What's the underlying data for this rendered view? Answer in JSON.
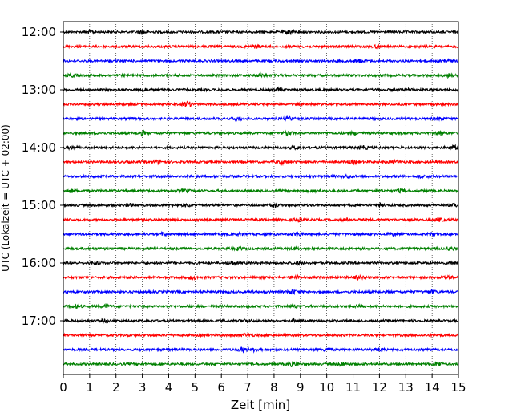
{
  "chart_data": {
    "type": "line",
    "subtype": "helicorder-seismogram",
    "xlabel": "Zeit  [min]",
    "ylabel": "UTC (Lokalzeit = UTC + 02:00)",
    "xlim": [
      0,
      15
    ],
    "x_ticks": [
      "0",
      "1",
      "2",
      "3",
      "4",
      "5",
      "6",
      "7",
      "8",
      "9",
      "10",
      "11",
      "12",
      "13",
      "14",
      "15"
    ],
    "y_ticks": [
      "12:00",
      "13:00",
      "14:00",
      "15:00",
      "16:00",
      "17:00"
    ],
    "grid": "vertical dotted lines at each minute",
    "trace_interval_minutes": 15,
    "trace_color_cycle": [
      "#000000",
      "#ff0000",
      "#0000ff",
      "#008000"
    ],
    "traces": [
      {
        "start": "12:00",
        "color": "#000000",
        "events": [
          [
            1.05,
            1.4
          ],
          [
            3.0,
            2.2
          ],
          [
            8.6,
            2.0
          ]
        ]
      },
      {
        "start": "12:15",
        "color": "#ff0000",
        "events": [
          [
            7.3,
            1.3
          ],
          [
            11.8,
            1.2
          ]
        ]
      },
      {
        "start": "12:30",
        "color": "#0000ff",
        "events": [
          [
            11.2,
            1.5
          ],
          [
            14.5,
            1.6
          ]
        ]
      },
      {
        "start": "12:45",
        "color": "#008000",
        "events": [
          [
            0.3,
            1.2
          ],
          [
            7.5,
            1.4
          ],
          [
            14.6,
            1.8
          ]
        ]
      },
      {
        "start": "13:00",
        "color": "#000000",
        "events": [
          [
            3.1,
            1.4
          ],
          [
            8.1,
            1.5
          ],
          [
            13.2,
            1.2
          ]
        ]
      },
      {
        "start": "13:15",
        "color": "#ff0000",
        "events": [
          [
            4.7,
            2.6
          ]
        ]
      },
      {
        "start": "13:30",
        "color": "#0000ff",
        "events": [
          [
            6.6,
            1.6
          ],
          [
            8.6,
            1.5
          ],
          [
            14.3,
            1.5
          ]
        ]
      },
      {
        "start": "13:45",
        "color": "#008000",
        "events": [
          [
            3.0,
            2.4
          ],
          [
            8.5,
            2.0
          ],
          [
            11.0,
            1.6
          ],
          [
            14.3,
            2.0
          ]
        ]
      },
      {
        "start": "14:00",
        "color": "#000000",
        "events": [
          [
            0.3,
            1.6
          ],
          [
            8.8,
            1.4
          ],
          [
            11.4,
            1.6
          ],
          [
            14.8,
            2.0
          ]
        ]
      },
      {
        "start": "14:15",
        "color": "#ff0000",
        "events": [
          [
            3.6,
            1.7
          ],
          [
            8.3,
            1.9
          ],
          [
            11.0,
            1.6
          ],
          [
            12.6,
            1.4
          ]
        ]
      },
      {
        "start": "14:30",
        "color": "#0000ff",
        "events": [
          [
            10.8,
            1.4
          ],
          [
            13.6,
            1.3
          ]
        ]
      },
      {
        "start": "14:45",
        "color": "#008000",
        "events": [
          [
            0.3,
            1.6
          ],
          [
            4.6,
            1.6
          ],
          [
            9.5,
            1.5
          ],
          [
            12.8,
            1.5
          ]
        ]
      },
      {
        "start": "15:00",
        "color": "#000000",
        "events": [
          [
            2.5,
            1.3
          ],
          [
            4.7,
            1.4
          ],
          [
            8.0,
            1.5
          ],
          [
            12.0,
            1.3
          ],
          [
            14.9,
            1.4
          ]
        ]
      },
      {
        "start": "15:15",
        "color": "#ff0000",
        "events": [
          [
            5.2,
            1.8
          ],
          [
            8.9,
            1.6
          ],
          [
            10.8,
            1.3
          ],
          [
            14.3,
            1.5
          ]
        ]
      },
      {
        "start": "15:30",
        "color": "#0000ff",
        "events": [
          [
            3.8,
            1.3
          ],
          [
            6.8,
            1.3
          ],
          [
            8.9,
            2.0
          ],
          [
            12.5,
            1.2
          ],
          [
            14.0,
            1.4
          ]
        ]
      },
      {
        "start": "15:45",
        "color": "#008000",
        "events": [
          [
            6.7,
            1.2
          ],
          [
            8.8,
            1.1
          ],
          [
            14.7,
            1.2
          ]
        ]
      },
      {
        "start": "16:00",
        "color": "#000000",
        "events": [
          [
            1.2,
            1.6
          ],
          [
            6.4,
            1.5
          ],
          [
            8.9,
            1.4
          ],
          [
            14.8,
            1.4
          ]
        ]
      },
      {
        "start": "16:15",
        "color": "#ff0000",
        "events": [
          [
            4.9,
            1.6
          ],
          [
            8.8,
            1.5
          ],
          [
            11.2,
            1.4
          ],
          [
            14.6,
            1.3
          ]
        ]
      },
      {
        "start": "16:30",
        "color": "#0000ff",
        "events": [
          [
            8.7,
            2.0
          ],
          [
            14.0,
            1.6
          ]
        ]
      },
      {
        "start": "16:45",
        "color": "#008000",
        "events": [
          [
            0.5,
            1.8
          ],
          [
            1.6,
            1.3
          ],
          [
            8.7,
            1.4
          ],
          [
            11.2,
            1.4
          ]
        ]
      },
      {
        "start": "17:00",
        "color": "#000000",
        "events": [
          [
            1.6,
            1.5
          ],
          [
            6.9,
            1.4
          ],
          [
            8.8,
            1.3
          ]
        ]
      },
      {
        "start": "17:15",
        "color": "#ff0000",
        "events": [
          [
            7.0,
            1.4
          ]
        ]
      },
      {
        "start": "17:30",
        "color": "#0000ff",
        "events": [
          [
            6.8,
            1.9
          ],
          [
            7.3,
            1.8
          ],
          [
            10.0,
            1.5
          ],
          [
            12.0,
            1.5
          ]
        ]
      },
      {
        "start": "17:45",
        "color": "#008000",
        "events": [
          [
            8.7,
            2.1
          ],
          [
            10.6,
            1.8
          ],
          [
            14.2,
            2.4
          ]
        ]
      }
    ]
  }
}
